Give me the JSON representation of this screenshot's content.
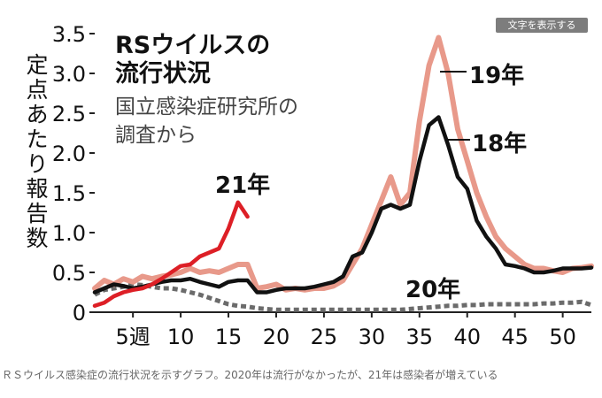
{
  "button": {
    "show_text_label": "文字を表示する"
  },
  "caption": "ＲＳウイルス感染症の流行状況を示すグラフ。2020年は流行がなかったが、21年は感染者が増えている",
  "chart_data": {
    "type": "line",
    "title": "RSウイルスの流行状況",
    "subtitle": "国立感染症研究所の調査から",
    "ylabel": "定点あたり報告数",
    "ylim": [
      0,
      3.5
    ],
    "xlim": [
      1,
      53
    ],
    "yticks": [
      0,
      0.5,
      1.0,
      1.5,
      2.0,
      2.5,
      3.0,
      3.5
    ],
    "ytick_labels": [
      "0",
      "0.5",
      "1.0",
      "1.5",
      "2.0",
      "2.5",
      "3.0",
      "3.5"
    ],
    "xticks": [
      5,
      10,
      15,
      20,
      25,
      30,
      35,
      40,
      45,
      50
    ],
    "xtick_labels": [
      "5週",
      "10",
      "15",
      "20",
      "25",
      "30",
      "35",
      "40",
      "45",
      "50"
    ],
    "grid": false,
    "series": [
      {
        "name": "19年",
        "color": "#e8998a",
        "style": "solid",
        "x": [
          1,
          2,
          3,
          4,
          5,
          6,
          7,
          8,
          9,
          10,
          11,
          12,
          13,
          14,
          15,
          16,
          17,
          18,
          19,
          20,
          21,
          22,
          23,
          24,
          25,
          26,
          27,
          28,
          29,
          30,
          31,
          32,
          33,
          34,
          35,
          36,
          37,
          38,
          39,
          40,
          41,
          42,
          43,
          44,
          45,
          46,
          47,
          48,
          49,
          50,
          51,
          52,
          53
        ],
        "y": [
          0.3,
          0.4,
          0.35,
          0.42,
          0.38,
          0.45,
          0.42,
          0.45,
          0.47,
          0.5,
          0.55,
          0.5,
          0.52,
          0.5,
          0.55,
          0.6,
          0.6,
          0.3,
          0.32,
          0.35,
          0.28,
          0.3,
          0.28,
          0.3,
          0.3,
          0.33,
          0.4,
          0.6,
          0.8,
          1.1,
          1.4,
          1.7,
          1.35,
          1.5,
          2.4,
          3.1,
          3.45,
          3.0,
          2.3,
          1.9,
          1.5,
          1.2,
          0.95,
          0.8,
          0.7,
          0.6,
          0.55,
          0.55,
          0.52,
          0.5,
          0.55,
          0.56,
          0.58
        ]
      },
      {
        "name": "18年",
        "color": "#111111",
        "style": "solid",
        "x": [
          1,
          2,
          3,
          4,
          5,
          6,
          7,
          8,
          9,
          10,
          11,
          12,
          13,
          14,
          15,
          16,
          17,
          18,
          19,
          20,
          21,
          22,
          23,
          24,
          25,
          26,
          27,
          28,
          29,
          30,
          31,
          32,
          33,
          34,
          35,
          36,
          37,
          38,
          39,
          40,
          41,
          42,
          43,
          44,
          45,
          46,
          47,
          48,
          49,
          50,
          51,
          52,
          53
        ],
        "y": [
          0.25,
          0.3,
          0.35,
          0.33,
          0.3,
          0.32,
          0.35,
          0.38,
          0.4,
          0.4,
          0.42,
          0.38,
          0.35,
          0.32,
          0.38,
          0.4,
          0.4,
          0.25,
          0.25,
          0.28,
          0.3,
          0.3,
          0.3,
          0.32,
          0.35,
          0.38,
          0.45,
          0.7,
          0.75,
          1.0,
          1.3,
          1.35,
          1.3,
          1.35,
          1.9,
          2.35,
          2.45,
          2.1,
          1.7,
          1.55,
          1.15,
          0.95,
          0.8,
          0.6,
          0.58,
          0.55,
          0.5,
          0.5,
          0.52,
          0.55,
          0.55,
          0.55,
          0.56
        ]
      },
      {
        "name": "21年",
        "color": "#dd1f26",
        "style": "solid",
        "x": [
          1,
          2,
          3,
          4,
          5,
          6,
          7,
          8,
          9,
          10,
          11,
          12,
          13,
          14,
          15,
          16,
          17
        ],
        "y": [
          0.08,
          0.12,
          0.2,
          0.25,
          0.28,
          0.3,
          0.35,
          0.42,
          0.5,
          0.58,
          0.6,
          0.7,
          0.75,
          0.8,
          1.05,
          1.38,
          1.2
        ]
      },
      {
        "name": "20年",
        "color": "#6b6b6b",
        "style": "dashed",
        "x": [
          1,
          2,
          3,
          4,
          5,
          6,
          7,
          8,
          9,
          10,
          11,
          12,
          13,
          14,
          15,
          16,
          17,
          18,
          19,
          20,
          21,
          22,
          23,
          24,
          25,
          26,
          27,
          28,
          29,
          30,
          31,
          32,
          33,
          34,
          35,
          36,
          37,
          38,
          39,
          40,
          41,
          42,
          43,
          44,
          45,
          46,
          47,
          48,
          49,
          50,
          51,
          52,
          53
        ],
        "y": [
          0.22,
          0.28,
          0.3,
          0.32,
          0.35,
          0.34,
          0.32,
          0.3,
          0.3,
          0.28,
          0.25,
          0.22,
          0.18,
          0.14,
          0.1,
          0.08,
          0.07,
          0.05,
          0.04,
          0.03,
          0.03,
          0.03,
          0.03,
          0.03,
          0.03,
          0.03,
          0.03,
          0.03,
          0.03,
          0.03,
          0.03,
          0.03,
          0.03,
          0.04,
          0.05,
          0.06,
          0.07,
          0.08,
          0.08,
          0.09,
          0.09,
          0.1,
          0.1,
          0.1,
          0.1,
          0.1,
          0.1,
          0.11,
          0.11,
          0.12,
          0.12,
          0.13,
          0.09
        ]
      }
    ]
  }
}
